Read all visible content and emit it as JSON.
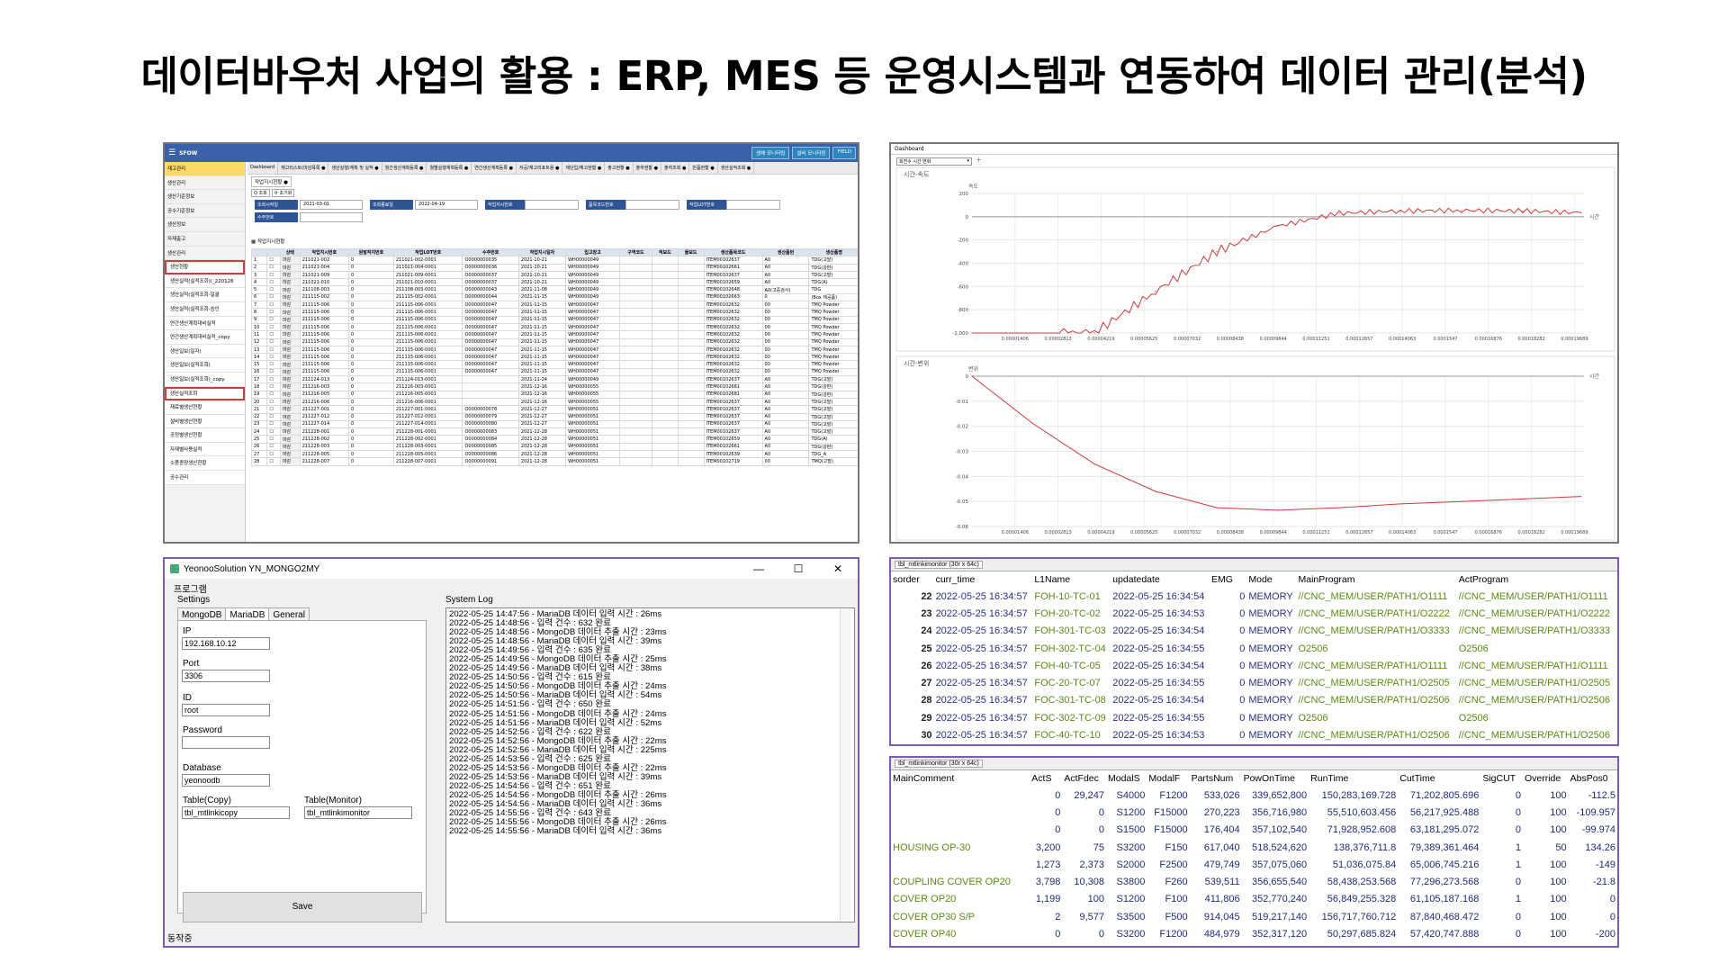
{
  "title": "데이터바우처 사업의 활용 : ERP, MES 등 운영시스템과 연동하여 데이터 관리(분석)",
  "erp": {
    "app_name": "SFOW",
    "top_buttons": [
      "생체 모니터링",
      "설비 모니터링",
      "FIELD"
    ],
    "sidebar": [
      "재고관리",
      "생산관리",
      "생산기준정보",
      "공수기준정보",
      "생산정보",
      "자재출고",
      "생산관리",
      "생산현황",
      "생산실적(실적조회)(_220126",
      "생산실적(실적조회-일괄",
      "생산실적(실적조회-승인",
      "연간생산계획대비실적",
      "연간생산계획대비실적_copy",
      "생산일보(일자)",
      "생산일보(실적조회)",
      "생산일보(실적조회)_copy",
      "생산실적조회",
      "재료별생산현황",
      "설비별생산현황",
      "공정별생산현황",
      "자재별사용실적",
      "소품종양생산현황",
      "공수관리"
    ],
    "tabs": [
      "Dashboard",
      "재고리스트(마감목록 ●",
      "생산실행/계획 및 실적 ●",
      "월간생산계획등록 ●",
      "월별실행계획등록 ●",
      "연간생산계획등록 ●",
      "자공/재고리포트용 ●",
      "재단입/재고현황 ●",
      "출고현황 ●",
      "출하현황 ●",
      "출하조회 ●",
      "반품현황 ●",
      "생산실적조회 ●"
    ],
    "page_title": "작업지시현황",
    "filters": {
      "date_from_label": "조회시작일",
      "date_from": "2021-03-01",
      "date_to_label": "조회종료일",
      "date_to": "2022-04-19",
      "order_label": "작업지시번호",
      "item_label": "품목코드번호",
      "lot_label": "작업LOT번호",
      "qty_label": "수주번호"
    },
    "grid_title": "작업지시현황",
    "columns": [
      "",
      "상태",
      "작업지시번호",
      "원발작지번호",
      "작업LOT번호",
      "수주번호",
      "작업지시일자",
      "입고창고",
      "구역코드",
      "적보드",
      "물보드",
      "생산품목코드",
      "생산품번",
      "생산품명"
    ],
    "rows": [
      [
        "1",
        "마감",
        "211021-002",
        "0",
        "211021-002-0001",
        "O0000000035",
        "2021-10-21",
        "WH00000049",
        "",
        "",
        "",
        "ITEM00102637",
        "A0",
        "TDG(고발)"
      ],
      [
        "2",
        "마감",
        "211021-004",
        "0",
        "211021-004-0001",
        "O0000000036",
        "2021-10-21",
        "WH00000049",
        "",
        "",
        "",
        "ITEM00102661",
        "A0",
        "TDG(강판)"
      ],
      [
        "3",
        "마감",
        "211021-009",
        "0",
        "211021-009-0001",
        "O0000000037",
        "2021-10-21",
        "WH00000049",
        "",
        "",
        "",
        "ITEM00102637",
        "A0",
        "TDG(고발)"
      ],
      [
        "4",
        "마감",
        "211021-010",
        "0",
        "211021-010-0001",
        "O0000000037",
        "2021-10-21",
        "WH00000049",
        "",
        "",
        "",
        "ITEM00102659",
        "A0",
        "TDG(A)"
      ],
      [
        "5",
        "마감",
        "211108-003",
        "0",
        "211108-003-0001",
        "O0000000043",
        "2021-11-08",
        "WH00000049",
        "",
        "",
        "",
        "ITEM00102648",
        "A0(고중검사)",
        "TDG"
      ],
      [
        "6",
        "마감",
        "211115-002",
        "0",
        "211115-002-0001",
        "O0000000044",
        "2021-11-15",
        "WH00000049",
        "",
        "",
        "",
        "ITEM00102663",
        "0",
        "(Box 재공품)"
      ],
      [
        "7",
        "마감",
        "211115-006",
        "0",
        "211115-006-0001",
        "O0000000047",
        "2021-11-15",
        "WH00000047",
        "",
        "",
        "",
        "ITEM00102632",
        "00",
        "TMQ Powder"
      ],
      [
        "8",
        "마감",
        "211115-006",
        "0",
        "211115-006-0001",
        "O0000000047",
        "2021-11-15",
        "WH00000047",
        "",
        "",
        "",
        "ITEM00102632",
        "00",
        "TMQ Powder"
      ],
      [
        "9",
        "마감",
        "211115-006",
        "0",
        "211115-006-0001",
        "O0000000047",
        "2021-11-15",
        "WH00000047",
        "",
        "",
        "",
        "ITEM00102632",
        "00",
        "TMQ Powder"
      ],
      [
        "10",
        "마감",
        "211115-006",
        "0",
        "211115-006-0001",
        "O0000000047",
        "2021-11-15",
        "WH00000047",
        "",
        "",
        "",
        "ITEM00102632",
        "00",
        "TMQ Powder"
      ],
      [
        "11",
        "마감",
        "211115-006",
        "0",
        "211115-006-0001",
        "O0000000047",
        "2021-11-15",
        "WH00000047",
        "",
        "",
        "",
        "ITEM00102632",
        "00",
        "TMQ Powder"
      ],
      [
        "12",
        "마감",
        "211115-006",
        "0",
        "211115-006-0001",
        "O0000000047",
        "2021-11-15",
        "WH00000047",
        "",
        "",
        "",
        "ITEM00102632",
        "00",
        "TMQ Powder"
      ],
      [
        "13",
        "마감",
        "211115-006",
        "0",
        "211115-006-0001",
        "O0000000047",
        "2021-11-15",
        "WH00000047",
        "",
        "",
        "",
        "ITEM00102632",
        "00",
        "TMQ Powder"
      ],
      [
        "14",
        "마감",
        "211115-006",
        "0",
        "211115-006-0001",
        "O0000000047",
        "2021-11-15",
        "WH00000047",
        "",
        "",
        "",
        "ITEM00102632",
        "00",
        "TMQ Powder"
      ],
      [
        "15",
        "마감",
        "211115-006",
        "0",
        "211115-006-0001",
        "O0000000047",
        "2021-11-15",
        "WH00000047",
        "",
        "",
        "",
        "ITEM00102632",
        "00",
        "TMQ Powder"
      ],
      [
        "16",
        "마감",
        "211115-006",
        "0",
        "211115-006-0001",
        "O0000000047",
        "2021-11-15",
        "WH00000047",
        "",
        "",
        "",
        "ITEM00102632",
        "00",
        "TMQ Powder"
      ],
      [
        "17",
        "마감",
        "211124-013",
        "0",
        "211124-013-0001",
        "",
        "2021-11-24",
        "WH00000049",
        "",
        "",
        "",
        "ITEM00102637",
        "A0",
        "TDG(고발)"
      ],
      [
        "18",
        "마감",
        "211216-003",
        "0",
        "211216-003-0001",
        "",
        "2021-12-16",
        "WH00000055",
        "",
        "",
        "",
        "ITEM00102661",
        "A0",
        "TDG(강판)"
      ],
      [
        "19",
        "마감",
        "211216-005",
        "0",
        "211216-005-0001",
        "",
        "2021-12-16",
        "WH00000055",
        "",
        "",
        "",
        "ITEM00102681",
        "A0",
        "TDG(강판)"
      ],
      [
        "20",
        "마감",
        "211216-006",
        "0",
        "211216-006-0001",
        "",
        "2021-12-16",
        "WH00000055",
        "",
        "",
        "",
        "ITEM00102637",
        "A0",
        "TDG(고발)"
      ],
      [
        "21",
        "마감",
        "211227-001",
        "0",
        "211227-001-0001",
        "O0000000078",
        "2021-12-27",
        "WH00000051",
        "",
        "",
        "",
        "ITEM00102637",
        "A0",
        "TDG(고발)"
      ],
      [
        "22",
        "마감",
        "211227-012",
        "0",
        "211227-012-0001",
        "O0000000079",
        "2021-12-27",
        "WH00000051",
        "",
        "",
        "",
        "ITEM00102637",
        "A0",
        "TDG(고발)"
      ],
      [
        "23",
        "마감",
        "211227-014",
        "0",
        "211227-014-0001",
        "O0000000080",
        "2021-12-27",
        "WH00000051",
        "",
        "",
        "",
        "ITEM00102637",
        "A0",
        "TDG(고발)"
      ],
      [
        "24",
        "마감",
        "211228-001",
        "0",
        "211228-001-0001",
        "O0000000083",
        "2021-12-28",
        "WH00000051",
        "",
        "",
        "",
        "ITEM00102637",
        "A0",
        "TDG(고발)"
      ],
      [
        "25",
        "마감",
        "211228-002",
        "0",
        "211228-002-0001",
        "O0000000084",
        "2021-12-28",
        "WH00000051",
        "",
        "",
        "",
        "ITEM00102659",
        "A0",
        "TDG(A)"
      ],
      [
        "26",
        "마감",
        "211228-003",
        "0",
        "211228-003-0001",
        "O0000000085",
        "2021-12-28",
        "WH00000051",
        "",
        "",
        "",
        "ITEM00102661",
        "A0",
        "TDG(강판)"
      ],
      [
        "27",
        "마감",
        "211228-005",
        "0",
        "211228-005-0001",
        "O0000000086",
        "2021-12-28",
        "WH00000051",
        "",
        "",
        "",
        "ITEM00102639",
        "A0",
        "TDG_A"
      ],
      [
        "28",
        "마감",
        "211228-007",
        "0",
        "211228-007-0001",
        "O0000000091",
        "2021-12-28",
        "WH00000051",
        "",
        "",
        "",
        "ITEM00102719",
        "00",
        "TMQ(고발)"
      ]
    ]
  },
  "charts": {
    "dashboard_tab": "Dashboard",
    "selector": "회전수 시간 변화",
    "chart_data": [
      {
        "type": "line",
        "title": "시간-속도",
        "xlabel": "시간",
        "ylabel": "속도",
        "xlim": [
          0,
          0.0002
        ],
        "ylim": [
          -1000,
          200
        ],
        "x_ticks": [
          "0.00001406",
          "0.00002813",
          "0.00004219",
          "0.00005625",
          "0.00007032",
          "0.00008438",
          "0.00009844",
          "0.00011251",
          "0.00012657",
          "0.00014063",
          "0.0001547",
          "0.00016876",
          "0.00018282",
          "0.00019689"
        ],
        "y_ticks": [
          "200",
          "0",
          "-200",
          "-400",
          "-600",
          "-800",
          "-1,000"
        ],
        "series": [
          {
            "x": [
              0,
              2e-05,
              4e-05,
              6e-05,
              8e-05,
              0.0001,
              0.00012,
              0.00014,
              0.00016,
              0.00018,
              0.000199
            ],
            "values": [
              -1000,
              -1000,
              -1000,
              -640,
              -300,
              -80,
              30,
              50,
              55,
              50,
              35
            ]
          }
        ]
      },
      {
        "type": "line",
        "title": "시간-변위",
        "xlabel": "시간",
        "ylabel": "변위",
        "xlim": [
          0,
          0.0002
        ],
        "ylim": [
          -0.06,
          0
        ],
        "x_ticks": [
          "0.00001406",
          "0.00002813",
          "0.00004219",
          "0.00005625",
          "0.00007032",
          "0.00008438",
          "0.00009844",
          "0.00011251",
          "0.00012657",
          "0.00014063",
          "0.0001547",
          "0.00016876",
          "0.00018282",
          "0.00019689"
        ],
        "y_ticks": [
          "0",
          "-0.01",
          "-0.02",
          "-0.03",
          "-0.04",
          "-0.05",
          "-0.06"
        ],
        "series": [
          {
            "x": [
              0,
              2e-05,
              4e-05,
              6e-05,
              8e-05,
              0.0001,
              0.00012,
              0.00014,
              0.00016,
              0.00018,
              0.000199
            ],
            "values": [
              0,
              -0.019,
              -0.035,
              -0.046,
              -0.0525,
              -0.0535,
              -0.0525,
              -0.051,
              -0.05,
              -0.049,
              -0.048
            ]
          }
        ]
      }
    ]
  },
  "logapp": {
    "window_title": "YeonooSolution YN_MONGO2MY",
    "menu": "프로그램",
    "settings_label": "Settings",
    "tabs": [
      "MongoDB",
      "MariaDB",
      "General"
    ],
    "fields": {
      "ip_label": "IP",
      "ip": "192.168.10.12",
      "port_label": "Port",
      "port": "3306",
      "id_label": "ID",
      "id": "root",
      "pw_label": "Password",
      "pw": "",
      "db_label": "Database",
      "db": "yeonoodb",
      "tcopy_label": "Table(Copy)",
      "tcopy": "tbl_mtlinkicopy",
      "tmon_label": "Table(Monitor)",
      "tmon": "tbl_mtlinkimonitor"
    },
    "save_label": "Save",
    "syslog_label": "System Log",
    "log": [
      "2022-05-25 14:47:56 - MariaDB 데이터 입력 시간 : 26ms",
      "2022-05-25 14:48:56 - 입력 건수 : 632 완료",
      "2022-05-25 14:48:56 - MongoDB 데이터 추출 시간 : 23ms",
      "2022-05-25 14:48:56 - MariaDB 데이터 입력 시간 : 39ms",
      "2022-05-25 14:49:56 - 입력 건수 : 635 완료",
      "2022-05-25 14:49:56 - MongoDB 데이터 추출 시간 : 25ms",
      "2022-05-25 14:49:56 - MariaDB 데이터 입력 시간 : 38ms",
      "2022-05-25 14:50:56 - 입력 건수 : 615 완료",
      "2022-05-25 14:50:56 - MongoDB 데이터 추출 시간 : 24ms",
      "2022-05-25 14:50:56 - MariaDB 데이터 입력 시간 : 54ms",
      "2022-05-25 14:51:56 - 입력 건수 : 650 완료",
      "2022-05-25 14:51:56 - MongoDB 데이터 추출 시간 : 24ms",
      "2022-05-25 14:51:56 - MariaDB 데이터 입력 시간 : 52ms",
      "2022-05-25 14:52:56 - 입력 건수 : 622 완료",
      "2022-05-25 14:52:56 - MongoDB 데이터 추출 시간 : 22ms",
      "2022-05-25 14:52:56 - MariaDB 데이터 입력 시간 : 225ms",
      "2022-05-25 14:53:56 - 입력 건수 : 625 완료",
      "2022-05-25 14:53:56 - MongoDB 데이터 추출 시간 : 22ms",
      "2022-05-25 14:53:56 - MariaDB 데이터 입력 시간 : 39ms",
      "2022-05-25 14:54:56 - 입력 건수 : 651 완료",
      "2022-05-25 14:54:56 - MongoDB 데이터 추출 시간 : 26ms",
      "2022-05-25 14:54:56 - MariaDB 데이터 입력 시간 : 36ms",
      "2022-05-25 14:55:56 - 입력 건수 : 643 완료",
      "2022-05-25 14:55:56 - MongoDB 데이터 추출 시간 : 26ms",
      "2022-05-25 14:55:56 - MariaDB 데이터 입력 시간 : 36ms"
    ],
    "status": "동작중"
  },
  "grid1": {
    "tab": "tbl_mtlinkimonitor (30r x 64c)",
    "columns": [
      "sorder",
      "curr_time",
      "L1Name",
      "updatedate",
      "EMG",
      "Mode",
      "MainProgram",
      "ActProgram"
    ],
    "rows": [
      [
        "22",
        "2022-05-25 16:34:57",
        "FOH-10-TC-01",
        "2022-05-25 16:34:54",
        "0",
        "MEMORY",
        "//CNC_MEM/USER/PATH1/O1111",
        "//CNC_MEM/USER/PATH1/O1111"
      ],
      [
        "23",
        "2022-05-25 16:34:57",
        "FOH-20-TC-02",
        "2022-05-25 16:34:53",
        "0",
        "MEMORY",
        "//CNC_MEM/USER/PATH1/O2222",
        "//CNC_MEM/USER/PATH1/O2222"
      ],
      [
        "24",
        "2022-05-25 16:34:57",
        "FOH-301-TC-03",
        "2022-05-25 16:34:54",
        "0",
        "MEMORY",
        "//CNC_MEM/USER/PATH1/O3333",
        "//CNC_MEM/USER/PATH1/O3333"
      ],
      [
        "25",
        "2022-05-25 16:34:57",
        "FOH-302-TC-04",
        "2022-05-25 16:34:55",
        "0",
        "MEMORY",
        "O2506",
        "O2506"
      ],
      [
        "26",
        "2022-05-25 16:34:57",
        "FOH-40-TC-05",
        "2022-05-25 16:34:54",
        "0",
        "MEMORY",
        "//CNC_MEM/USER/PATH1/O1111",
        "//CNC_MEM/USER/PATH1/O1111"
      ],
      [
        "27",
        "2022-05-25 16:34:57",
        "FOC-20-TC-07",
        "2022-05-25 16:34:55",
        "0",
        "MEMORY",
        "//CNC_MEM/USER/PATH1/O2505",
        "//CNC_MEM/USER/PATH1/O2505"
      ],
      [
        "28",
        "2022-05-25 16:34:57",
        "FOC-301-TC-08",
        "2022-05-25 16:34:54",
        "0",
        "MEMORY",
        "//CNC_MEM/USER/PATH1/O2506",
        "//CNC_MEM/USER/PATH1/O2506"
      ],
      [
        "29",
        "2022-05-25 16:34:57",
        "FOC-302-TC-09",
        "2022-05-25 16:34:55",
        "0",
        "MEMORY",
        "O2506",
        "O2506"
      ],
      [
        "30",
        "2022-05-25 16:34:57",
        "FOC-40-TC-10",
        "2022-05-25 16:34:53",
        "0",
        "MEMORY",
        "//CNC_MEM/USER/PATH1/O2506",
        "//CNC_MEM/USER/PATH1/O2506"
      ]
    ]
  },
  "grid2": {
    "tab": "tbl_mtlinkimonitor (30r x 64c)",
    "columns": [
      "MainComment",
      "ActS",
      "ActFdec",
      "ModalS",
      "ModalF",
      "PartsNum",
      "PowOnTime",
      "RunTime",
      "CutTime",
      "SigCUT",
      "Override",
      "AbsPos0"
    ],
    "rows": [
      [
        "",
        "0",
        "29,247",
        "S4000",
        "F1200",
        "533,026",
        "339,652,800",
        "150,283,169.728",
        "71,202,805.696",
        "0",
        "100",
        "-112.5"
      ],
      [
        "",
        "0",
        "0",
        "S1200",
        "F15000",
        "270,223",
        "356,716,980",
        "55,510,603.456",
        "56,217,925.488",
        "0",
        "100",
        "-109.957"
      ],
      [
        "",
        "0",
        "0",
        "S1500",
        "F15000",
        "176,404",
        "357,102,540",
        "71,928,952.608",
        "63,181,295.072",
        "0",
        "100",
        "-99.974"
      ],
      [
        "HOUSING OP-30",
        "3,200",
        "75",
        "S3200",
        "F150",
        "617,040",
        "518,524,620",
        "138,376,711.8",
        "79,389,361.464",
        "1",
        "50",
        "134.26"
      ],
      [
        "",
        "1,273",
        "2,373",
        "S2000",
        "F2500",
        "479,749",
        "357,075,060",
        "51,036,075.84",
        "65,006,745.216",
        "1",
        "100",
        "-149"
      ],
      [
        "COUPLING COVER OP20",
        "3,798",
        "10,308",
        "S3800",
        "F260",
        "539,511",
        "356,655,540",
        "58,438,253.568",
        "77,296,273.568",
        "0",
        "100",
        "-21.8"
      ],
      [
        "COVER OP20",
        "1,199",
        "100",
        "S1200",
        "F100",
        "411,806",
        "352,770,240",
        "56,849,255.328",
        "61,105,187.168",
        "1",
        "100",
        "0"
      ],
      [
        "COVER OP30 S/P",
        "2",
        "9,577",
        "S3500",
        "F500",
        "914,045",
        "519,217,140",
        "156,717,760.712",
        "87,840,468.472",
        "0",
        "100",
        "0"
      ],
      [
        "COVER OP40",
        "0",
        "0",
        "S3200",
        "F1200",
        "484,979",
        "352,317,120",
        "50,297,685.824",
        "57,420,747.888",
        "0",
        "100",
        "-200"
      ]
    ]
  }
}
